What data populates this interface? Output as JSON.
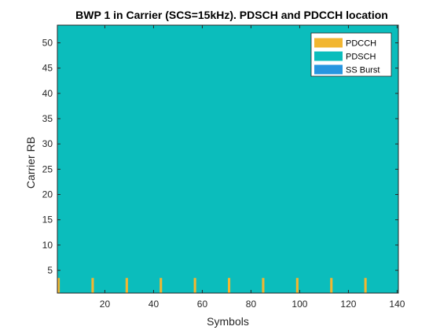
{
  "chart_data": {
    "type": "heatmap",
    "title": "BWP 1 in Carrier (SCS=15kHz). PDSCH and PDCCH location",
    "xlabel": "Symbols",
    "ylabel": "Carrier RB",
    "xlim": [
      0.5,
      140.5
    ],
    "ylim": [
      0.5,
      53.5
    ],
    "xticks": [
      20,
      40,
      60,
      80,
      100,
      120,
      140
    ],
    "yticks": [
      5,
      10,
      15,
      20,
      25,
      30,
      35,
      40,
      45,
      50
    ],
    "grid": false,
    "legend_position": "top-right",
    "background_series": "PDSCH",
    "series": [
      {
        "name": "PDCCH",
        "color": "#F2B631"
      },
      {
        "name": "PDSCH",
        "color": "#0BBDBC"
      },
      {
        "name": "SS Burst",
        "color": "#2796E0"
      }
    ],
    "pdsch_region": {
      "symbols": [
        1,
        140
      ],
      "rbs": [
        1,
        53
      ]
    },
    "pdcch_symbols": [
      1,
      15,
      29,
      43,
      57,
      71,
      85,
      99,
      113,
      127
    ],
    "pdcch_rbs": [
      1,
      3
    ]
  }
}
